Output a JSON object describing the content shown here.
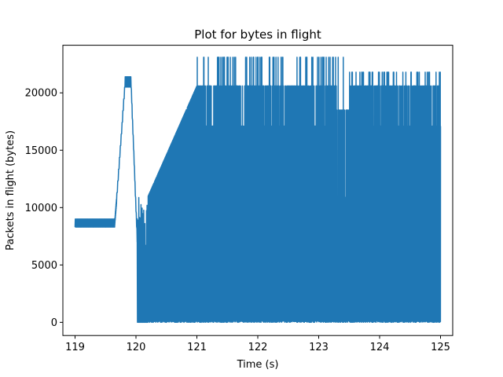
{
  "chart_data": {
    "type": "line",
    "title": "Plot for bytes in flight",
    "xlabel": "Time (s)",
    "ylabel": "Packets in flight (bytes)",
    "xlim": [
      118.8,
      125.2
    ],
    "ylim": [
      -1150,
      24150
    ],
    "xticks": [
      119,
      120,
      121,
      122,
      123,
      124,
      125
    ],
    "xtick_labels": [
      "119",
      "120",
      "121",
      "122",
      "123",
      "124",
      "125"
    ],
    "yticks": [
      0,
      5000,
      10000,
      15000,
      20000
    ],
    "ytick_labels": [
      "0",
      "5000",
      "10000",
      "15000",
      "20000"
    ],
    "grid": false,
    "line_color": "#1f77b4",
    "series": [
      {
        "segments": [
          {
            "x_range": [
              119.0,
              119.65
            ],
            "style": "oscillating",
            "low": 8300,
            "high": 9000
          },
          {
            "x_range": [
              119.65,
              119.68
            ],
            "style": "ramp",
            "from": 8300,
            "to": 10300
          },
          {
            "x_range": [
              119.68,
              119.82
            ],
            "style": "ramp",
            "from": 10300,
            "to": 20500
          },
          {
            "x_range": [
              119.82,
              119.92
            ],
            "style": "oscillating",
            "low": 20500,
            "high": 21400
          },
          {
            "x_range": [
              119.92,
              120.02
            ],
            "style": "ramp",
            "from": 20500,
            "to": 7000
          },
          {
            "x_range": [
              120.02,
              120.2
            ],
            "style": "sparse-drops",
            "low": 0,
            "high": 10900
          },
          {
            "x_range": [
              120.2,
              121.0
            ],
            "style": "dense-oscillating",
            "low": 0,
            "high_from": 11000,
            "high_to": 20600
          },
          {
            "x_range": [
              121.0,
              123.3
            ],
            "style": "dense-oscillating",
            "low": 0,
            "high_values": [
              17100,
              20600,
              23100
            ]
          },
          {
            "x_range": [
              123.3,
              123.5
            ],
            "style": "dense-oscillating",
            "low": 0,
            "high_values": [
              10900,
              18500,
              23100
            ]
          },
          {
            "x_range": [
              123.5,
              125.0
            ],
            "style": "dense-oscillating",
            "low": 0,
            "high_values": [
              17100,
              20600,
              21800
            ]
          }
        ]
      }
    ]
  }
}
